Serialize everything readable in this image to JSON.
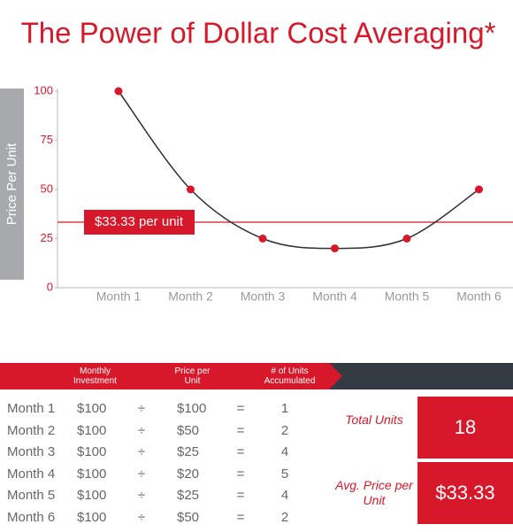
{
  "chart_data": {
    "type": "line",
    "title": "The Power of Dollar Cost Averaging*",
    "ylabel": "Price Per Unit",
    "categories": [
      "Month 1",
      "Month 2",
      "Month 3",
      "Month 4",
      "Month 5",
      "Month 6"
    ],
    "series": [
      {
        "color": "#d7182a",
        "values": [
          100,
          50,
          25,
          20,
          25,
          50
        ]
      }
    ],
    "ylim": [
      0,
      100
    ],
    "yticks": [
      0,
      25,
      50,
      75,
      100
    ],
    "grid": false,
    "reference": {
      "value": 33.33,
      "label": "$33.33 per unit",
      "color": "#d7182a"
    }
  },
  "table": {
    "headers": [
      "Monthly Investment",
      "Price per Unit",
      "# of Units Accumulated"
    ],
    "rows": [
      [
        "Month 1",
        "$100",
        "÷",
        "$100",
        "=",
        "1"
      ],
      [
        "Month 2",
        "$100",
        "÷",
        "$50",
        "=",
        "2"
      ],
      [
        "Month 3",
        "$100",
        "÷",
        "$25",
        "=",
        "4"
      ],
      [
        "Month 4",
        "$100",
        "÷",
        "$20",
        "=",
        "5"
      ],
      [
        "Month 5",
        "$100",
        "÷",
        "$25",
        "=",
        "4"
      ],
      [
        "Month 6",
        "$100",
        "÷",
        "$50",
        "=",
        "2"
      ]
    ]
  },
  "summary": [
    {
      "label": "Total Units",
      "value": "18"
    },
    {
      "label": "Avg. Price per Unit",
      "value": "$33.33"
    }
  ]
}
